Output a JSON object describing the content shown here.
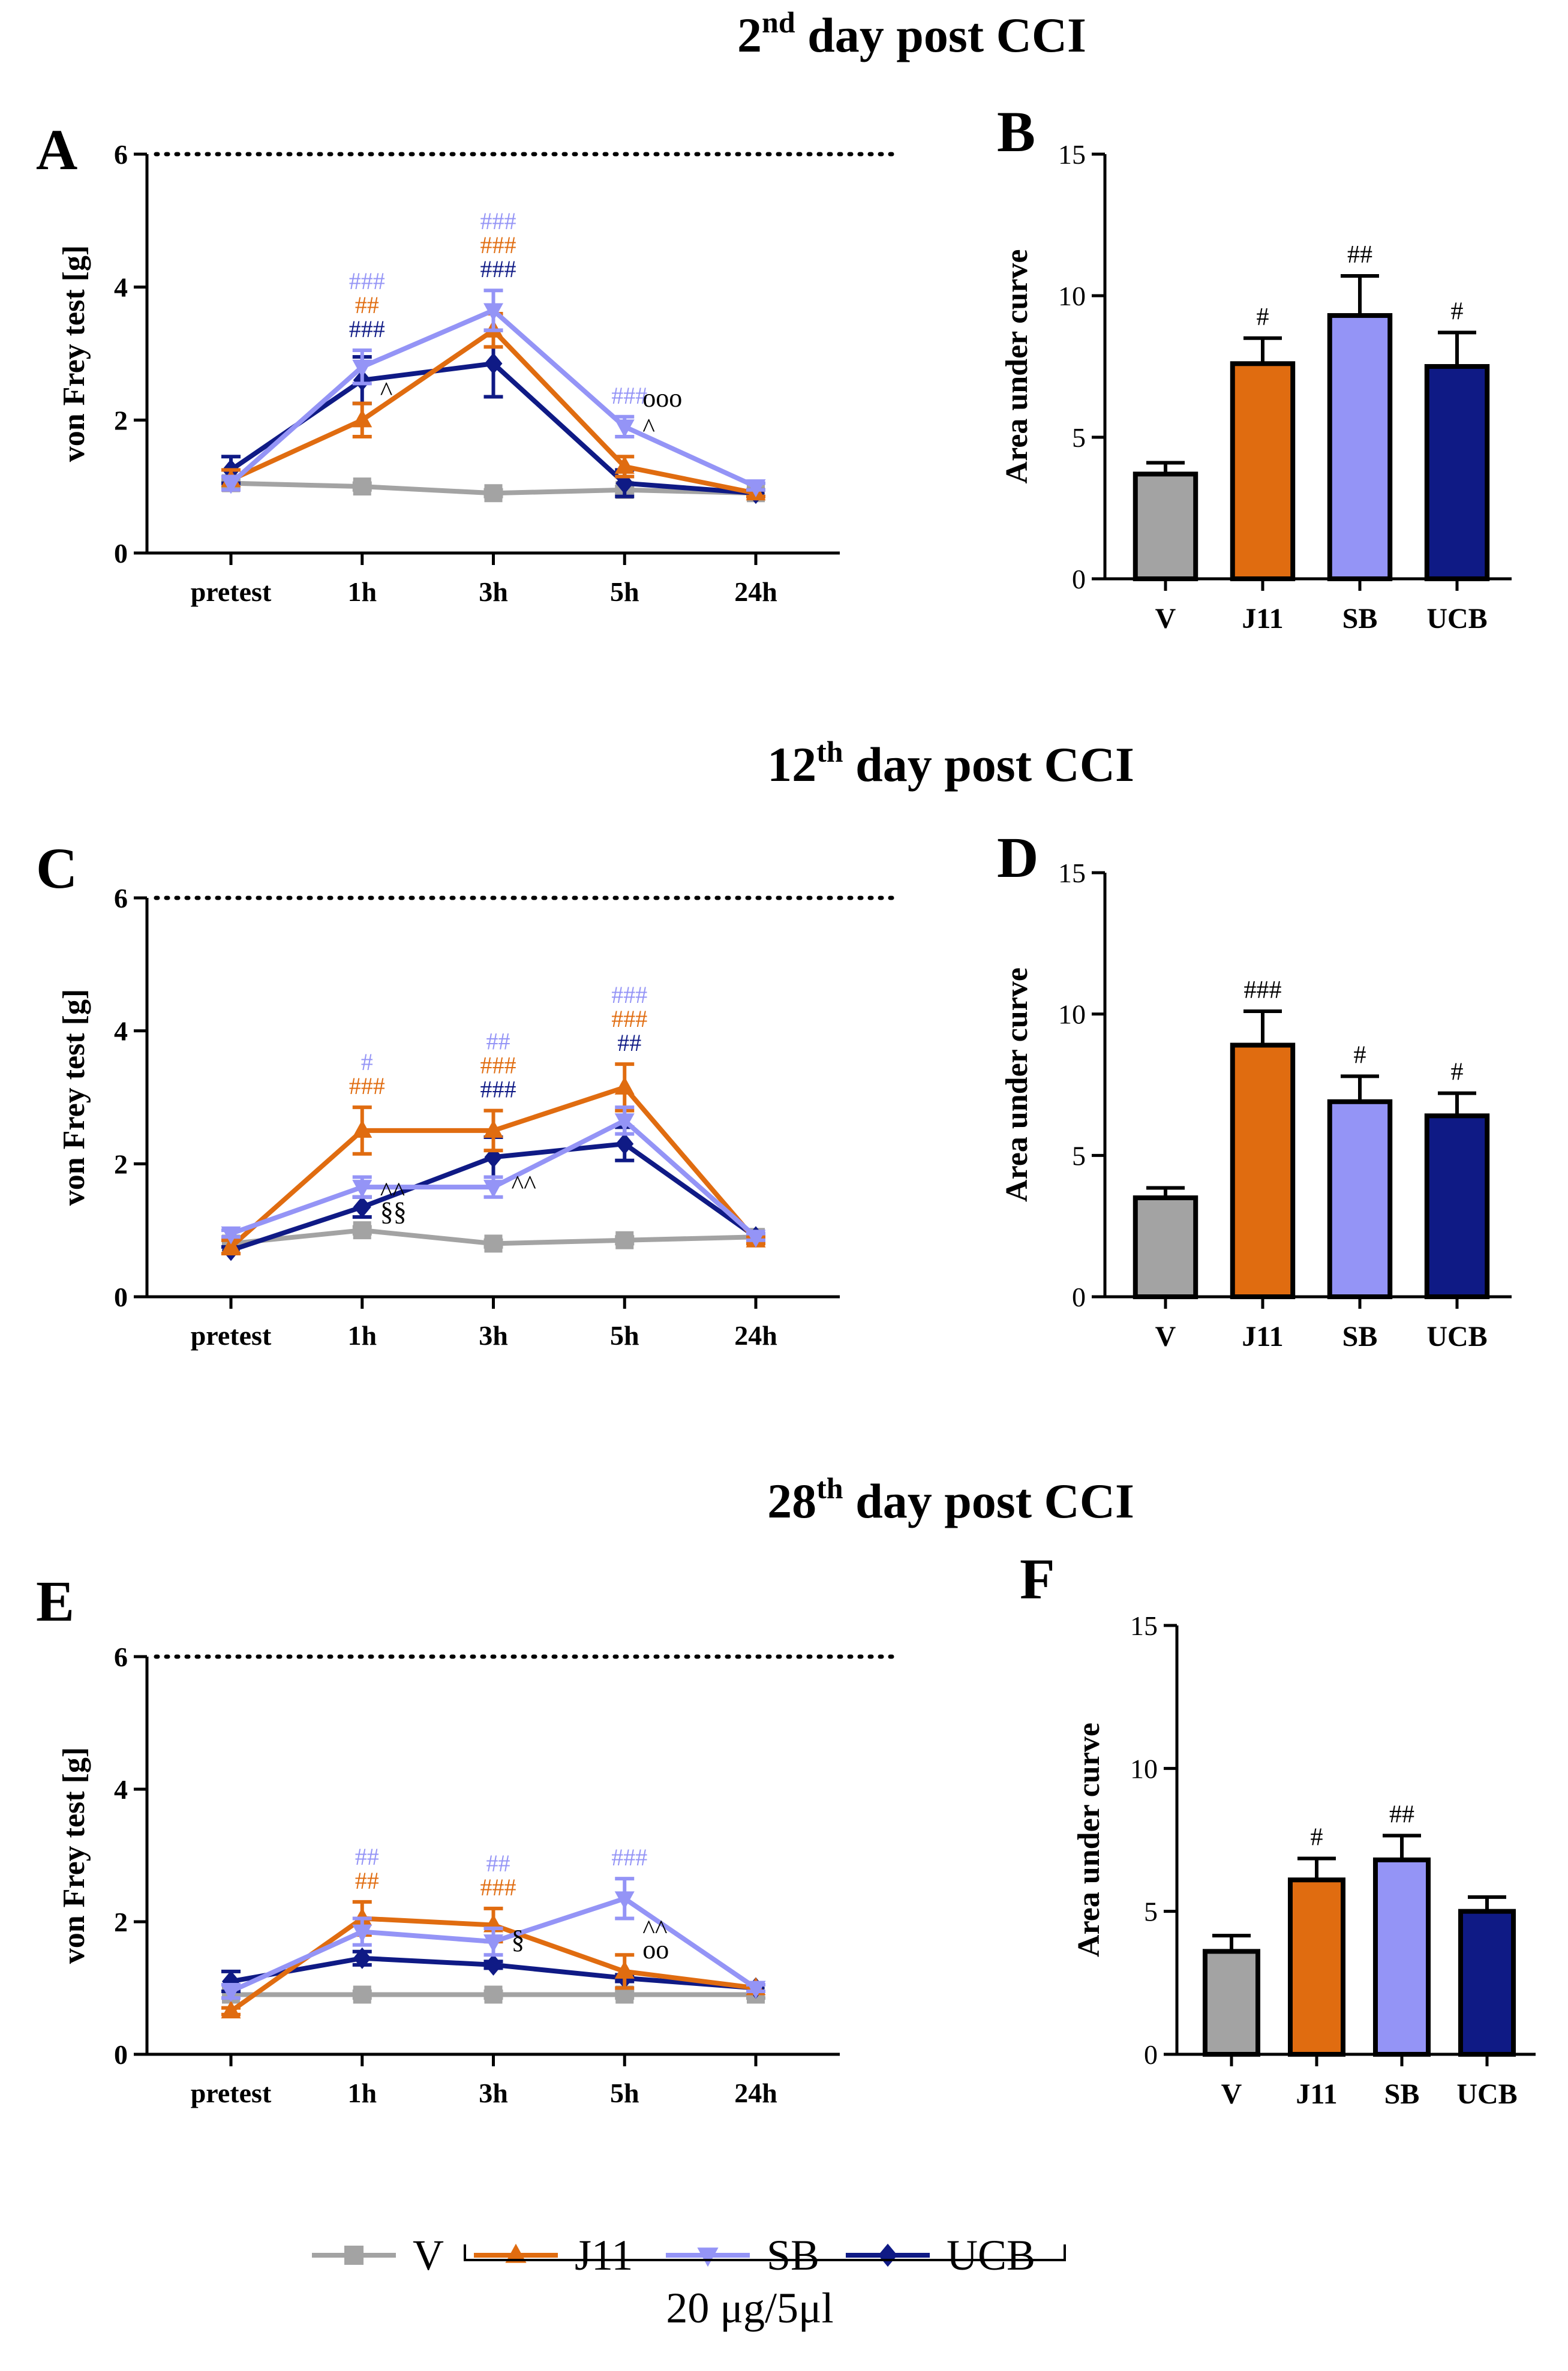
{
  "figure": {
    "sections": [
      {
        "title_prefix": "2",
        "title_sup": "nd",
        "title_rest": " day post CCI"
      },
      {
        "title_prefix": "12",
        "title_sup": "th",
        "title_rest": " day post CCI"
      },
      {
        "title_prefix": "28",
        "title_sup": "th",
        "title_rest": " day post CCI"
      }
    ],
    "legend": {
      "items": [
        "V",
        "J11",
        "SB",
        "UCB"
      ],
      "bracket_label": "20 μg/5μl"
    },
    "colors": {
      "V": "#a3a3a3",
      "J11": "#e06c10",
      "SB": "#9494f6",
      "UCB": "#0f1a85"
    }
  },
  "chart_data": [
    {
      "panel": "A",
      "type": "line",
      "x": [
        "pretest",
        "1h",
        "3h",
        "5h",
        "24h"
      ],
      "ylabel": "von Frey test [g]",
      "ylim": [
        0,
        6
      ],
      "yticks": [
        0,
        2,
        4,
        6
      ],
      "reference_line": 6,
      "series": [
        {
          "name": "V",
          "values": [
            1.05,
            1.0,
            0.9,
            0.95,
            0.9
          ],
          "errors": [
            0.05,
            0.05,
            0.05,
            0.05,
            0.05
          ]
        },
        {
          "name": "J11",
          "values": [
            1.1,
            2.0,
            3.35,
            1.3,
            0.9
          ],
          "errors": [
            0.15,
            0.25,
            0.25,
            0.15,
            0.05
          ]
        },
        {
          "name": "SB",
          "values": [
            1.05,
            2.8,
            3.65,
            1.9,
            1.0
          ],
          "errors": [
            0.1,
            0.25,
            0.3,
            0.15,
            0.05
          ]
        },
        {
          "name": "UCB",
          "values": [
            1.25,
            2.6,
            2.85,
            1.05,
            0.9
          ],
          "errors": [
            0.2,
            0.35,
            0.5,
            0.2,
            0.05
          ]
        }
      ],
      "annotations": [
        {
          "x": "1h",
          "lines": [
            {
              "text": "###",
              "series": "SB"
            },
            {
              "text": "##",
              "series": "J11"
            },
            {
              "text": "###",
              "series": "UCB"
            }
          ]
        },
        {
          "x": "3h",
          "lines": [
            {
              "text": "###",
              "series": "SB"
            },
            {
              "text": "###",
              "series": "J11"
            },
            {
              "text": "###",
              "series": "UCB"
            }
          ]
        },
        {
          "x": "5h",
          "lines": [
            {
              "text": "###",
              "series": "SB"
            }
          ]
        }
      ],
      "side_marks": [
        {
          "x": "1h",
          "y": 2.3,
          "text": "^"
        },
        {
          "x": "5h",
          "y": 2.2,
          "text": "ooo"
        },
        {
          "x": "5h",
          "y": 1.75,
          "text": "^"
        }
      ]
    },
    {
      "panel": "B",
      "type": "bar",
      "categories": [
        "V",
        "J11",
        "SB",
        "UCB"
      ],
      "values": [
        3.7,
        7.6,
        9.3,
        7.5
      ],
      "errors": [
        0.4,
        0.9,
        1.4,
        1.2
      ],
      "labels": [
        "",
        "#",
        "##",
        "#"
      ],
      "ylabel": "Area under curve",
      "ylim": [
        0,
        15
      ],
      "yticks": [
        0,
        5,
        10,
        15
      ]
    },
    {
      "panel": "C",
      "type": "line",
      "x": [
        "pretest",
        "1h",
        "3h",
        "5h",
        "24h"
      ],
      "ylabel": "von Frey test [g]",
      "ylim": [
        0,
        6
      ],
      "yticks": [
        0,
        2,
        4,
        6
      ],
      "reference_line": 6,
      "series": [
        {
          "name": "V",
          "values": [
            0.8,
            1.0,
            0.8,
            0.85,
            0.9
          ],
          "errors": [
            0.05,
            0.05,
            0.05,
            0.05,
            0.05
          ]
        },
        {
          "name": "J11",
          "values": [
            0.75,
            2.5,
            2.5,
            3.15,
            0.85
          ],
          "errors": [
            0.1,
            0.35,
            0.3,
            0.35,
            0.05
          ]
        },
        {
          "name": "SB",
          "values": [
            0.95,
            1.65,
            1.65,
            2.65,
            0.9
          ],
          "errors": [
            0.05,
            0.15,
            0.15,
            0.2,
            0.05
          ]
        },
        {
          "name": "UCB",
          "values": [
            0.7,
            1.35,
            2.1,
            2.3,
            0.9
          ],
          "errors": [
            0.05,
            0.15,
            0.3,
            0.25,
            0.05
          ]
        }
      ],
      "annotations": [
        {
          "x": "1h",
          "lines": [
            {
              "text": "#",
              "series": "SB"
            },
            {
              "text": "###",
              "series": "J11"
            }
          ]
        },
        {
          "x": "3h",
          "lines": [
            {
              "text": "##",
              "series": "SB"
            },
            {
              "text": "###",
              "series": "J11"
            },
            {
              "text": "###",
              "series": "UCB"
            }
          ]
        },
        {
          "x": "5h",
          "lines": [
            {
              "text": "###",
              "series": "SB"
            },
            {
              "text": "###",
              "series": "J11"
            },
            {
              "text": "##",
              "series": "UCB"
            }
          ]
        }
      ],
      "side_marks": [
        {
          "x": "1h",
          "y": 1.45,
          "text": "^^"
        },
        {
          "x": "1h",
          "y": 1.15,
          "text": "§§"
        },
        {
          "x": "3h",
          "y": 1.55,
          "text": "^^"
        }
      ]
    },
    {
      "panel": "D",
      "type": "bar",
      "categories": [
        "V",
        "J11",
        "SB",
        "UCB"
      ],
      "values": [
        3.5,
        8.9,
        6.9,
        6.4
      ],
      "errors": [
        0.35,
        1.2,
        0.9,
        0.8
      ],
      "labels": [
        "",
        "###",
        "#",
        "#"
      ],
      "ylabel": "Area under curve",
      "ylim": [
        0,
        15
      ],
      "yticks": [
        0,
        5,
        10,
        15
      ]
    },
    {
      "panel": "E",
      "type": "line",
      "x": [
        "pretest",
        "1h",
        "3h",
        "5h",
        "24h"
      ],
      "ylabel": "von Frey test [g]",
      "ylim": [
        0,
        6
      ],
      "yticks": [
        0,
        2,
        4,
        6
      ],
      "reference_line": 6,
      "series": [
        {
          "name": "V",
          "values": [
            0.9,
            0.9,
            0.9,
            0.9,
            0.9
          ],
          "errors": [
            0.05,
            0.05,
            0.05,
            0.05,
            0.05
          ]
        },
        {
          "name": "J11",
          "values": [
            0.65,
            2.05,
            1.95,
            1.25,
            1.0
          ],
          "errors": [
            0.05,
            0.25,
            0.25,
            0.25,
            0.05
          ]
        },
        {
          "name": "SB",
          "values": [
            0.95,
            1.85,
            1.7,
            2.35,
            1.0
          ],
          "errors": [
            0.1,
            0.2,
            0.2,
            0.3,
            0.05
          ]
        },
        {
          "name": "UCB",
          "values": [
            1.1,
            1.45,
            1.35,
            1.15,
            1.0
          ],
          "errors": [
            0.15,
            0.1,
            0.05,
            0.05,
            0.05
          ]
        }
      ],
      "annotations": [
        {
          "x": "1h",
          "lines": [
            {
              "text": "##",
              "series": "SB"
            },
            {
              "text": "##",
              "series": "J11"
            }
          ]
        },
        {
          "x": "3h",
          "lines": [
            {
              "text": "##",
              "series": "SB"
            },
            {
              "text": "###",
              "series": "J11"
            }
          ]
        },
        {
          "x": "5h",
          "lines": [
            {
              "text": "###",
              "series": "SB"
            }
          ]
        }
      ],
      "side_marks": [
        {
          "x": "3h",
          "y": 1.6,
          "text": "§"
        },
        {
          "x": "5h",
          "y": 1.75,
          "text": "^^"
        },
        {
          "x": "5h",
          "y": 1.45,
          "text": "oo"
        }
      ]
    },
    {
      "panel": "F",
      "type": "bar",
      "categories": [
        "V",
        "J11",
        "SB",
        "UCB"
      ],
      "values": [
        3.6,
        6.1,
        6.8,
        5.0
      ],
      "errors": [
        0.55,
        0.75,
        0.85,
        0.5
      ],
      "labels": [
        "",
        "#",
        "##",
        ""
      ],
      "ylabel": "Area under curve",
      "ylim": [
        0,
        15
      ],
      "yticks": [
        0,
        5,
        10,
        15
      ]
    }
  ]
}
